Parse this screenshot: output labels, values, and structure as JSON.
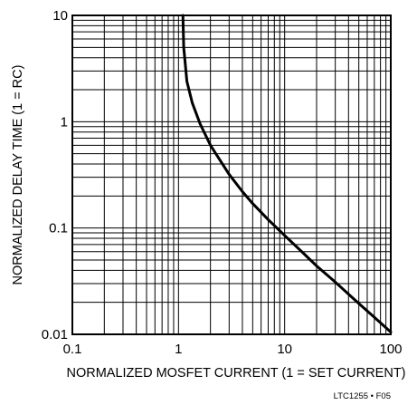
{
  "chart_data": {
    "type": "line",
    "x_scale": "log",
    "y_scale": "log",
    "xlim": [
      0.1,
      100
    ],
    "ylim": [
      0.01,
      10
    ],
    "grid": true,
    "xlabel": "NORMALIZED MOSFET CURRENT (1 = SET CURRENT)",
    "ylabel": "NORMALIZED DELAY TIME (1 = RC)",
    "x_ticks": [
      {
        "value": 0.1,
        "label": "0.1"
      },
      {
        "value": 1,
        "label": "1"
      },
      {
        "value": 10,
        "label": "10"
      },
      {
        "value": 100,
        "label": "100"
      }
    ],
    "y_ticks": [
      {
        "value": 0.01,
        "label": "0.01"
      },
      {
        "value": 0.1,
        "label": "0.1"
      },
      {
        "value": 1,
        "label": "1"
      },
      {
        "value": 10,
        "label": "10"
      }
    ],
    "series": [
      {
        "color": "#000000",
        "points": [
          {
            "x": 1.1,
            "y": 10
          },
          {
            "x": 1.12,
            "y": 5
          },
          {
            "x": 1.2,
            "y": 2.4
          },
          {
            "x": 1.35,
            "y": 1.5
          },
          {
            "x": 1.6,
            "y": 0.95
          },
          {
            "x": 2,
            "y": 0.6
          },
          {
            "x": 3,
            "y": 0.32
          },
          {
            "x": 4,
            "y": 0.22
          },
          {
            "x": 5,
            "y": 0.17
          },
          {
            "x": 7,
            "y": 0.12
          },
          {
            "x": 10,
            "y": 0.085
          },
          {
            "x": 15,
            "y": 0.058
          },
          {
            "x": 20,
            "y": 0.044
          },
          {
            "x": 30,
            "y": 0.031
          },
          {
            "x": 50,
            "y": 0.0195
          },
          {
            "x": 70,
            "y": 0.0145
          },
          {
            "x": 100,
            "y": 0.0105
          }
        ]
      }
    ]
  },
  "footnote": "LTC1255 • F05"
}
